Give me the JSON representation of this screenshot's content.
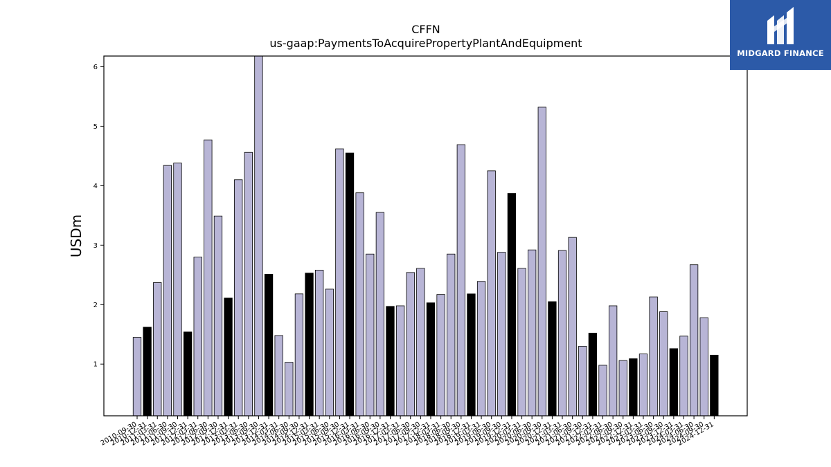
{
  "logo": {
    "text": "MIDGARD FINANCE"
  },
  "colors": {
    "light_bar": "#b8b5d6",
    "dark_bar": "#000000",
    "logo_bg": "#2c5aa8"
  },
  "chart_data": {
    "type": "bar",
    "title": "CFFN",
    "subtitle": "us-gaap:PaymentsToAcquirePropertyPlantAndEquipment",
    "xlabel": "",
    "ylabel": "USDm",
    "ylim": [
      0.13,
      6.18
    ],
    "yticks": [
      1,
      2,
      3,
      4,
      5,
      6
    ],
    "grid": false,
    "categories": [
      "2010-09-30",
      "2010-12-31",
      "2011-03-31",
      "2011-06-30",
      "2011-09-30",
      "2011-12-31",
      "2012-03-31",
      "2012-06-30",
      "2012-09-30",
      "2012-12-31",
      "2013-03-31",
      "2013-06-30",
      "2013-09-30",
      "2013-12-31",
      "2014-03-31",
      "2014-06-30",
      "2014-09-30",
      "2014-12-31",
      "2015-03-31",
      "2015-06-30",
      "2015-09-30",
      "2015-12-31",
      "2016-03-31",
      "2016-06-30",
      "2016-09-30",
      "2016-12-31",
      "2017-03-31",
      "2017-06-30",
      "2017-09-30",
      "2017-12-31",
      "2018-03-31",
      "2018-06-30",
      "2018-09-30",
      "2018-12-31",
      "2019-03-31",
      "2019-06-30",
      "2019-09-30",
      "2019-12-31",
      "2020-03-31",
      "2020-06-30",
      "2020-09-30",
      "2020-12-31",
      "2021-03-31",
      "2021-06-30",
      "2021-09-30",
      "2021-12-31",
      "2022-03-31",
      "2022-06-30",
      "2022-09-30",
      "2022-12-31",
      "2023-03-31",
      "2023-06-30",
      "2023-09-30",
      "2023-12-31",
      "2024-03-31",
      "2024-06-30",
      "2024-09-30",
      "2024-12-31"
    ],
    "values": [
      1.45,
      1.62,
      2.37,
      4.34,
      4.38,
      1.54,
      2.8,
      4.77,
      3.49,
      2.11,
      4.1,
      4.56,
      6.2,
      2.51,
      1.48,
      1.03,
      2.18,
      2.53,
      2.58,
      2.26,
      4.62,
      4.55,
      3.88,
      2.85,
      3.55,
      1.97,
      1.98,
      2.54,
      2.61,
      2.03,
      2.17,
      2.85,
      4.69,
      2.18,
      2.39,
      4.25,
      2.88,
      3.87,
      2.61,
      2.92,
      5.32,
      2.05,
      2.91,
      3.13,
      1.3,
      1.52,
      0.98,
      1.98,
      1.06,
      1.09,
      1.17,
      2.13,
      1.88,
      1.26,
      1.47,
      2.67,
      1.78,
      1.15
    ],
    "highlight": [
      false,
      true,
      false,
      false,
      false,
      true,
      false,
      false,
      false,
      true,
      false,
      false,
      false,
      true,
      false,
      false,
      false,
      true,
      false,
      false,
      false,
      true,
      false,
      false,
      false,
      true,
      false,
      false,
      false,
      true,
      false,
      false,
      false,
      true,
      false,
      false,
      false,
      true,
      false,
      false,
      false,
      true,
      false,
      false,
      false,
      true,
      false,
      false,
      false,
      true,
      false,
      false,
      false,
      true,
      false,
      false,
      false,
      true
    ]
  }
}
